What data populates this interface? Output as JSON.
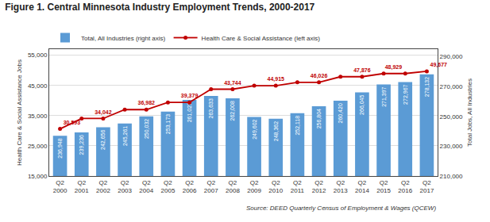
{
  "chart_data": {
    "type": "bar",
    "title": "Figure 1. Central Minnesota Industry Employment Trends, 2000-2017",
    "categories": [
      "Q2\n2000",
      "Q2\n2001",
      "Q2\n2002",
      "Q2\n2003",
      "Q2\n2004",
      "Q2\n2005",
      "Q2\n2006",
      "Q2\n2007",
      "Q2\n2008",
      "Q2\n2009",
      "Q2\n2010",
      "Q2\n2011",
      "Q2\n2012",
      "Q2\n2013",
      "Q2\n2014",
      "Q2\n2015",
      "Q2\n2016",
      "Q2\n2017"
    ],
    "series": [
      {
        "name": "Total, All Industries (right axis)",
        "type": "bar",
        "axis": "y2",
        "color": "#5b9bd5",
        "values": [
          236948,
          239236,
          242656,
          245261,
          250032,
          253173,
          261027,
          263633,
          262008,
          249602,
          248362,
          252118,
          256804,
          260420,
          266045,
          271397,
          272967,
          278132
        ],
        "value_labels": [
          "236,948",
          "239,236",
          "242,656",
          "245,261",
          "250,032",
          "253,173",
          "261,027",
          "263,633",
          "262,008",
          "249,602",
          "248,362",
          "252,118",
          "256,804",
          "260,420",
          "266,045",
          "271,397",
          "272,967",
          "278,132"
        ]
      },
      {
        "name": "Health Care & Social Assistance (left axis)",
        "type": "line",
        "axis": "y",
        "color": "#c00000",
        "marker": "circle",
        "values": [
          30593,
          34042,
          34042,
          36982,
          36982,
          39379,
          39379,
          43744,
          43744,
          44915,
          44915,
          46026,
          46026,
          47876,
          47876,
          48929,
          48929,
          49677
        ],
        "value_labels": [
          "30,593",
          null,
          "34,042",
          null,
          "36,982",
          null,
          "39,379",
          null,
          "43,744",
          null,
          "44,915",
          null,
          "46,026",
          null,
          "47,876",
          null,
          "48,929",
          "49,677"
        ]
      }
    ],
    "ylabel": "Health Care & Social Assistance Jobs",
    "y2label": "Total Jobs, All Industries",
    "ylim": [
      15000,
      57000
    ],
    "yticks": [
      {
        "value": 15000,
        "label": "15,000"
      },
      {
        "value": 25000,
        "label": "25,000"
      },
      {
        "value": 35000,
        "label": "35,000"
      },
      {
        "value": 45000,
        "label": "45,000"
      },
      {
        "value": 55000,
        "label": "55,000"
      }
    ],
    "y2lim": [
      210000,
      295000
    ],
    "y2ticks": [
      {
        "value": 210000,
        "label": "210,000"
      },
      {
        "value": 230000,
        "label": "230,000"
      },
      {
        "value": 250000,
        "label": "250,000"
      },
      {
        "value": 270000,
        "label": "270,000"
      },
      {
        "value": 290000,
        "label": "290,000"
      }
    ],
    "grid": true,
    "legend": "upper left",
    "data_labels": true,
    "annotations": [
      "Source: DEED Quarterly Census of Employment & Wages (QCEW)"
    ]
  }
}
